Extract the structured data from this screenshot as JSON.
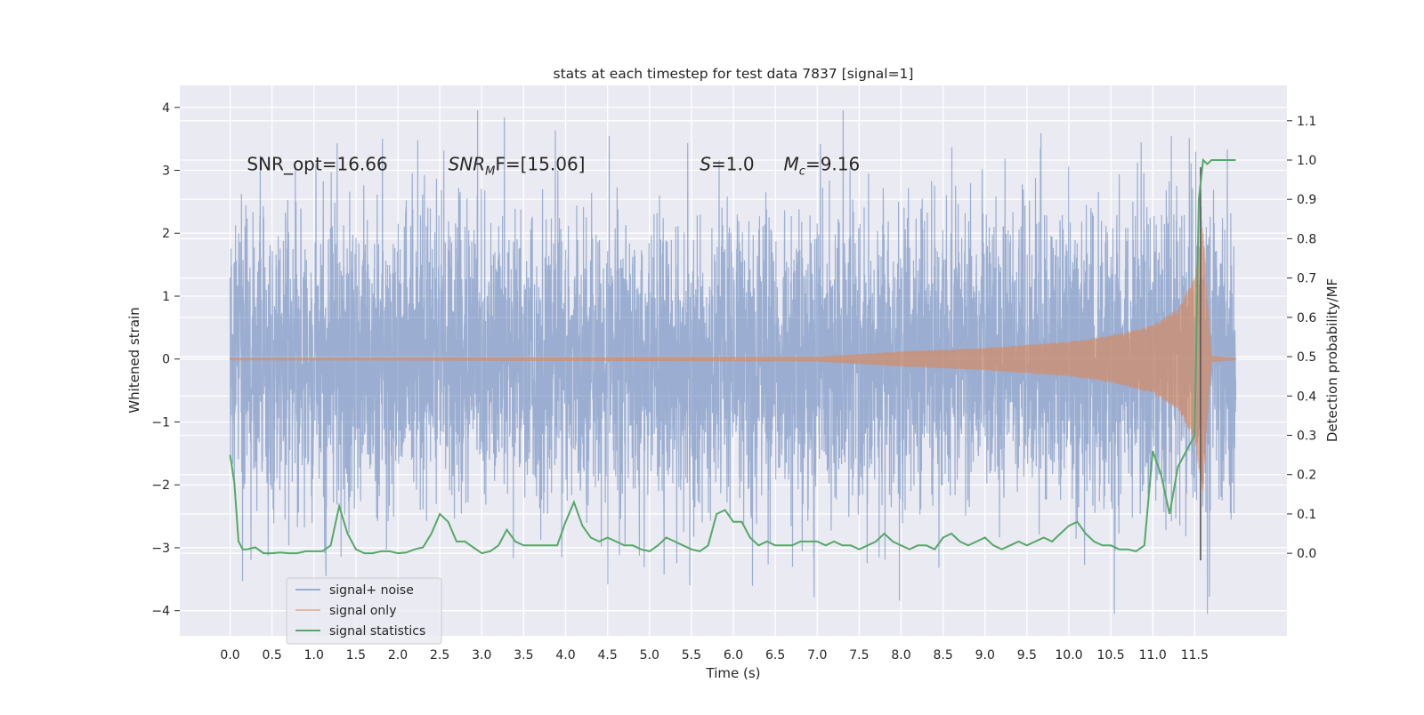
{
  "chart_data": {
    "type": "line",
    "title": "stats at each timestep for test data 7837 [signal=1]",
    "xlabel": "Time (s)",
    "ylabel": "Whitened strain",
    "y2label": "Detection probability/MF",
    "xlim": [
      -0.6,
      12.6
    ],
    "ylim": [
      -4.4,
      4.35
    ],
    "y2lim": [
      -0.21,
      1.19
    ],
    "xticks": [
      0.0,
      0.5,
      1.0,
      1.5,
      2.0,
      2.5,
      3.0,
      3.5,
      4.0,
      4.5,
      5.0,
      5.5,
      6.0,
      6.5,
      7.0,
      7.5,
      8.0,
      8.5,
      9.0,
      9.5,
      10.0,
      10.5,
      11.0,
      11.5
    ],
    "xtick_labels": [
      "0.0",
      "0.5",
      "1.0",
      "1.5",
      "2.0",
      "2.5",
      "3.0",
      "3.5",
      "4.0",
      "4.5",
      "5.0",
      "5.5",
      "6.0",
      "6.5",
      "7.0",
      "7.5",
      "8.0",
      "8.5",
      "9.0",
      "9.5",
      "10.0",
      "10.5",
      "11.0",
      "11.5"
    ],
    "yticks": [
      -4,
      -3,
      -2,
      -1,
      0,
      1,
      2,
      3,
      4
    ],
    "ytick_labels": [
      "−4",
      "−3",
      "−2",
      "−1",
      "0",
      "1",
      "2",
      "3",
      "4"
    ],
    "y2ticks": [
      0.0,
      0.1,
      0.2,
      0.3,
      0.4,
      0.5,
      0.6,
      0.7,
      0.8,
      0.9,
      1.0,
      1.1
    ],
    "y2tick_labels": [
      "0.0",
      "0.1",
      "0.2",
      "0.3",
      "0.4",
      "0.5",
      "0.6",
      "0.7",
      "0.8",
      "0.9",
      "1.0",
      "1.1"
    ],
    "grid": true,
    "legend_position": "lower-left",
    "annotations": [
      {
        "text": "SNR_opt=16.66",
        "x": 0.2,
        "y": 3.1
      },
      {
        "text": "SNR",
        "sub": "M",
        "rest": "F=[15.06]",
        "x": 2.6,
        "y": 3.1
      },
      {
        "text": "S",
        "rest": "=1.0",
        "x": 5.6,
        "y": 3.1
      },
      {
        "text": "M",
        "sub": "c",
        "rest": "=9.16",
        "x": 6.6,
        "y": 3.1
      }
    ],
    "vline": {
      "x": 11.57,
      "ymin": -3.2,
      "ymax": 3.05
    },
    "series": [
      {
        "name": "signal+ noise",
        "color": "#4c72b0",
        "opacity": 0.5,
        "kind": "noise",
        "t_start": 0.0,
        "t_end": 11.99,
        "typical_amplitude": 1.2,
        "peak_positive": 3.95,
        "peak_negative": -4.05
      },
      {
        "name": "signal only",
        "color": "#dd8452",
        "opacity": 0.5,
        "kind": "chirp",
        "t_start": 0.0,
        "t_end": 11.99,
        "merger_time": 11.6,
        "peak_amplitude": 2.2,
        "envelope_points": [
          [
            0.0,
            0.02
          ],
          [
            7.0,
            0.04
          ],
          [
            8.0,
            0.12
          ],
          [
            9.0,
            0.18
          ],
          [
            10.0,
            0.28
          ],
          [
            10.5,
            0.38
          ],
          [
            11.0,
            0.55
          ],
          [
            11.3,
            0.8
          ],
          [
            11.5,
            1.3
          ],
          [
            11.6,
            2.2
          ],
          [
            11.65,
            1.0
          ],
          [
            11.7,
            0.05
          ],
          [
            11.99,
            0.02
          ]
        ]
      },
      {
        "name": "signal statistics",
        "color": "#55a868",
        "axis": "right",
        "x": [
          0.0,
          0.05,
          0.1,
          0.15,
          0.2,
          0.3,
          0.4,
          0.5,
          0.6,
          0.7,
          0.8,
          0.9,
          1.0,
          1.1,
          1.2,
          1.3,
          1.4,
          1.5,
          1.6,
          1.7,
          1.8,
          1.9,
          2.0,
          2.1,
          2.2,
          2.3,
          2.4,
          2.5,
          2.6,
          2.7,
          2.8,
          2.9,
          3.0,
          3.1,
          3.2,
          3.3,
          3.4,
          3.5,
          3.6,
          3.7,
          3.8,
          3.9,
          4.0,
          4.1,
          4.2,
          4.3,
          4.4,
          4.5,
          4.6,
          4.7,
          4.8,
          4.9,
          5.0,
          5.1,
          5.2,
          5.3,
          5.4,
          5.5,
          5.6,
          5.7,
          5.8,
          5.9,
          6.0,
          6.1,
          6.2,
          6.3,
          6.4,
          6.5,
          6.6,
          6.7,
          6.8,
          6.9,
          7.0,
          7.1,
          7.2,
          7.3,
          7.4,
          7.5,
          7.6,
          7.7,
          7.8,
          7.9,
          8.0,
          8.1,
          8.2,
          8.3,
          8.4,
          8.5,
          8.6,
          8.7,
          8.8,
          8.9,
          9.0,
          9.1,
          9.2,
          9.3,
          9.4,
          9.5,
          9.6,
          9.7,
          9.8,
          9.9,
          10.0,
          10.1,
          10.2,
          10.3,
          10.4,
          10.5,
          10.6,
          10.7,
          10.8,
          10.9,
          11.0,
          11.1,
          11.2,
          11.3,
          11.4,
          11.5,
          11.55,
          11.6,
          11.65,
          11.7,
          11.8,
          11.9,
          11.99
        ],
        "y": [
          0.25,
          0.18,
          0.03,
          0.01,
          0.01,
          0.015,
          0.0,
          0.0,
          0.002,
          0.0,
          0.0,
          0.005,
          0.005,
          0.005,
          0.02,
          0.12,
          0.05,
          0.01,
          0.0,
          0.0,
          0.005,
          0.005,
          0.0,
          0.002,
          0.01,
          0.015,
          0.05,
          0.1,
          0.08,
          0.03,
          0.03,
          0.015,
          0.0,
          0.005,
          0.02,
          0.06,
          0.03,
          0.02,
          0.02,
          0.02,
          0.02,
          0.02,
          0.08,
          0.13,
          0.07,
          0.04,
          0.03,
          0.04,
          0.03,
          0.02,
          0.02,
          0.01,
          0.005,
          0.02,
          0.04,
          0.03,
          0.02,
          0.01,
          0.005,
          0.02,
          0.1,
          0.11,
          0.08,
          0.08,
          0.04,
          0.02,
          0.03,
          0.02,
          0.02,
          0.02,
          0.03,
          0.03,
          0.03,
          0.02,
          0.03,
          0.02,
          0.02,
          0.01,
          0.02,
          0.03,
          0.05,
          0.03,
          0.02,
          0.01,
          0.02,
          0.02,
          0.01,
          0.04,
          0.05,
          0.03,
          0.02,
          0.03,
          0.04,
          0.02,
          0.01,
          0.02,
          0.03,
          0.02,
          0.03,
          0.04,
          0.03,
          0.05,
          0.07,
          0.08,
          0.05,
          0.03,
          0.02,
          0.02,
          0.01,
          0.01,
          0.005,
          0.02,
          0.26,
          0.2,
          0.1,
          0.22,
          0.26,
          0.3,
          0.9,
          1.0,
          0.99,
          1.0,
          1.0,
          1.0,
          1.0
        ]
      }
    ]
  }
}
